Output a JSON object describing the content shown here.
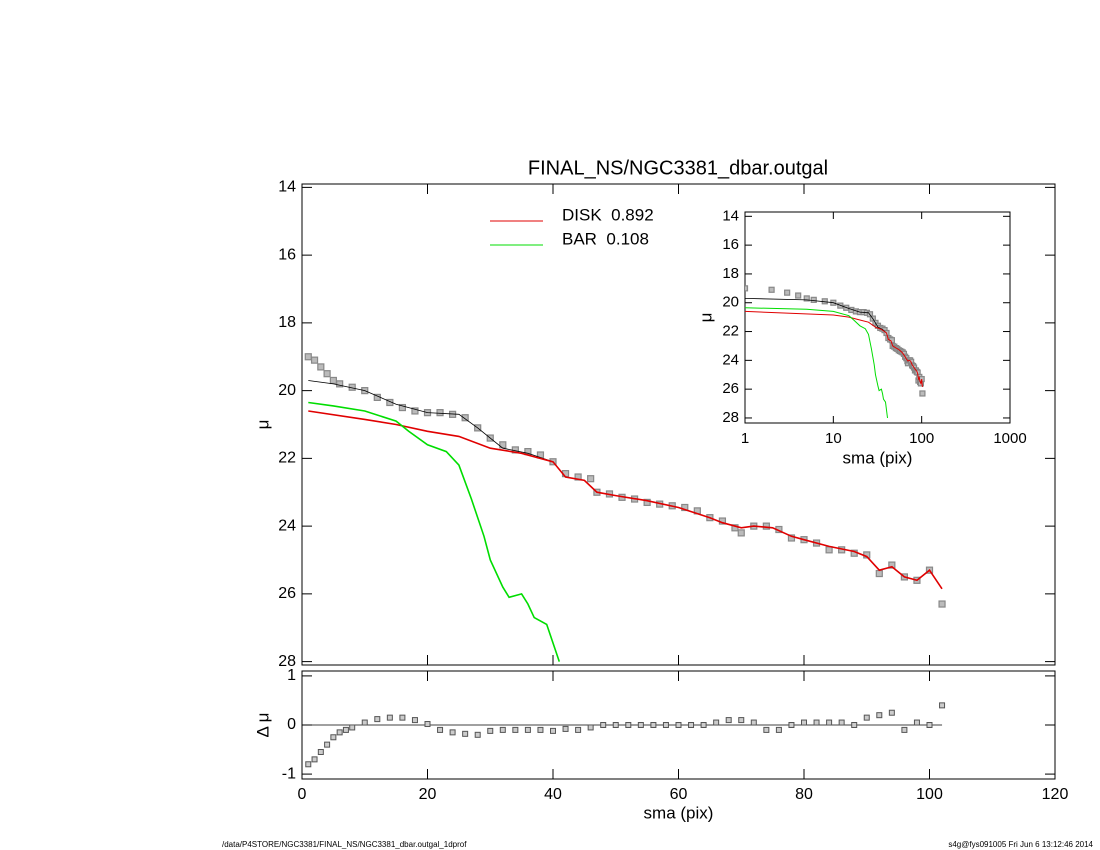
{
  "chart_data": [
    {
      "type": "line",
      "title": "FINAL_NS/NGC3381_dbar.outgal",
      "y_label": "μ",
      "xlim": [
        0,
        120
      ],
      "ylim": [
        13.9,
        28.1
      ],
      "yticks": [
        14,
        16,
        18,
        20,
        22,
        24,
        26,
        28
      ],
      "y_inverted": true,
      "series": [
        {
          "name": null,
          "style": "markers",
          "color": "#888888",
          "x": [
            1,
            2,
            3,
            4,
            5,
            6,
            8,
            10,
            12,
            14,
            16,
            18,
            20,
            22,
            24,
            26,
            28,
            30,
            32,
            34,
            36,
            38,
            40,
            42,
            44,
            46,
            47,
            49,
            51,
            53,
            55,
            57,
            59,
            61,
            63,
            65,
            67,
            69,
            70,
            72,
            74,
            76,
            78,
            80,
            82,
            84,
            86,
            88,
            90,
            92,
            94,
            96,
            98,
            100,
            102
          ],
          "values": [
            19.0,
            19.1,
            19.3,
            19.5,
            19.7,
            19.8,
            19.9,
            20.0,
            20.2,
            20.35,
            20.5,
            20.6,
            20.65,
            20.65,
            20.7,
            20.8,
            21.1,
            21.4,
            21.6,
            21.75,
            21.8,
            21.9,
            22.1,
            22.45,
            22.55,
            22.6,
            23.0,
            23.05,
            23.15,
            23.2,
            23.3,
            23.35,
            23.4,
            23.45,
            23.55,
            23.75,
            23.85,
            24.05,
            24.2,
            24.0,
            24.0,
            24.1,
            24.35,
            24.4,
            24.5,
            24.7,
            24.7,
            24.8,
            24.85,
            25.4,
            25.15,
            25.5,
            25.6,
            25.3,
            26.3
          ]
        },
        {
          "name": null,
          "style": "line",
          "color": "#000000",
          "x": [
            1,
            5,
            10,
            15,
            20,
            25,
            28,
            32,
            36,
            40
          ],
          "values": [
            19.7,
            19.8,
            20.0,
            20.4,
            20.65,
            20.7,
            21.1,
            21.7,
            21.85,
            22.1
          ]
        },
        {
          "name": "DISK  0.892",
          "style": "line",
          "color": "#e00000",
          "x": [
            1,
            10,
            15,
            20,
            25,
            30,
            35,
            40,
            42,
            45,
            47,
            50,
            55,
            60,
            65,
            67,
            70,
            72,
            75,
            78,
            80,
            84,
            88,
            90,
            92,
            94,
            96,
            98,
            100,
            102
          ],
          "values": [
            20.6,
            20.85,
            21.0,
            21.2,
            21.35,
            21.7,
            21.85,
            22.1,
            22.55,
            22.65,
            23.0,
            23.1,
            23.25,
            23.45,
            23.75,
            23.9,
            24.05,
            24.0,
            24.05,
            24.3,
            24.4,
            24.6,
            24.75,
            24.9,
            25.3,
            25.2,
            25.5,
            25.6,
            25.3,
            25.85
          ]
        },
        {
          "name": "BAR  0.108",
          "style": "line",
          "color": "#00dd00",
          "x": [
            1,
            5,
            10,
            15,
            17,
            20,
            23,
            25,
            27,
            29,
            30,
            32,
            33,
            35,
            36,
            37,
            39,
            41
          ],
          "values": [
            20.35,
            20.45,
            20.6,
            20.9,
            21.2,
            21.6,
            21.8,
            22.2,
            23.2,
            24.3,
            25.0,
            25.8,
            26.1,
            26.0,
            26.3,
            26.7,
            26.9,
            28.0
          ]
        }
      ]
    },
    {
      "type": "scatter",
      "x_label": "sma (pix)",
      "y_label": "Δ μ",
      "xlim": [
        0,
        120
      ],
      "xticks": [
        0,
        20,
        40,
        60,
        80,
        100,
        120
      ],
      "ylim": [
        -1.1,
        1.1
      ],
      "yticks": [
        -1,
        0,
        1
      ],
      "color": "#555555",
      "x": [
        1,
        2,
        3,
        4,
        5,
        6,
        7,
        8,
        10,
        12,
        14,
        16,
        18,
        20,
        22,
        24,
        26,
        28,
        30,
        32,
        34,
        36,
        38,
        40,
        42,
        44,
        46,
        48,
        50,
        52,
        54,
        56,
        58,
        60,
        62,
        64,
        66,
        68,
        70,
        72,
        74,
        76,
        78,
        80,
        82,
        84,
        86,
        88,
        90,
        92,
        94,
        96,
        98,
        100,
        102
      ],
      "values": [
        -0.8,
        -0.7,
        -0.55,
        -0.4,
        -0.25,
        -0.15,
        -0.1,
        -0.05,
        0.05,
        0.12,
        0.15,
        0.15,
        0.1,
        0.02,
        -0.1,
        -0.15,
        -0.18,
        -0.2,
        -0.12,
        -0.1,
        -0.1,
        -0.1,
        -0.1,
        -0.12,
        -0.08,
        -0.1,
        -0.05,
        0.0,
        0.0,
        0.0,
        0.0,
        0.0,
        0.0,
        0.0,
        0.0,
        0.0,
        0.05,
        0.1,
        0.1,
        0.05,
        -0.1,
        -0.1,
        0.0,
        0.05,
        0.05,
        0.05,
        0.05,
        0.0,
        0.15,
        0.2,
        0.25,
        -0.1,
        0.05,
        0.0,
        0.4
      ]
    },
    {
      "type": "line",
      "x_scale": "log",
      "x_label": "sma (pix)",
      "y_label": "μ",
      "xlim": [
        1,
        1000
      ],
      "xticks": [
        1,
        10,
        100,
        1000
      ],
      "ylim": [
        13.7,
        28.35
      ],
      "yticks": [
        14,
        16,
        18,
        20,
        22,
        24,
        26,
        28
      ],
      "y_inverted": true
    }
  ],
  "footer": {
    "left": "/data/P4STORE/NGC3381/FINAL_NS/NGC3381_dbar.outgal_1dprof",
    "right": "s4g@fys091005  Fri Jun  6 13:12:46 2014"
  }
}
